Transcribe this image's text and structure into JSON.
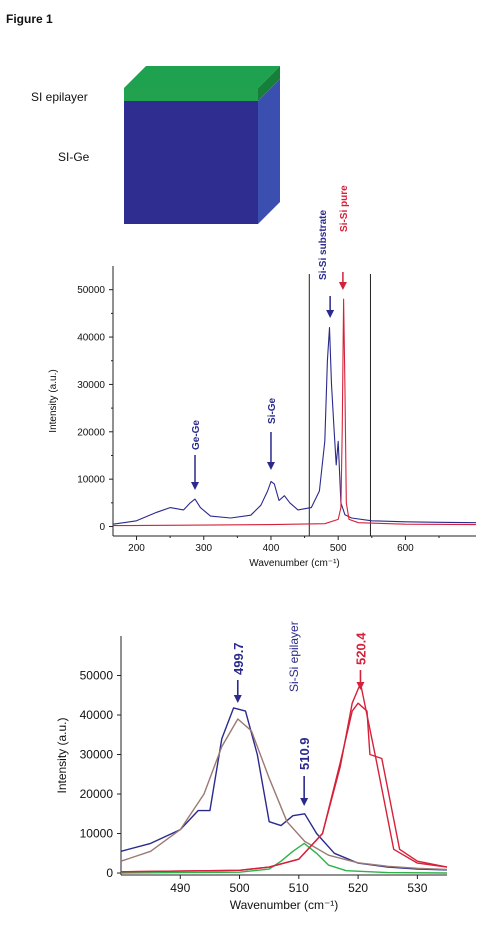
{
  "figure_label": "Figure 1",
  "schematic": {
    "top_label": "SI epilayer",
    "bottom_label": "SI-Ge",
    "colors": {
      "epilayer_top": "#1fa24f",
      "epilayer_side": "#16803b",
      "front": "#2f2d8f",
      "side": "#3b4fb0"
    }
  },
  "colors": {
    "blue": "#2b2a8c",
    "red": "#d6213a",
    "green": "#2db34a",
    "brown": "#9a7a74",
    "axis": "#222222"
  },
  "chart_data": [
    {
      "type": "line",
      "xlabel": "Wavenumber (cm⁻¹)",
      "ylabel": "Intensity (a.u.)",
      "xlim": [
        165,
        705
      ],
      "ylim": [
        -2000,
        55000
      ],
      "xticks": [
        200,
        300,
        400,
        500,
        600
      ],
      "yticks": [
        0,
        10000,
        20000,
        30000,
        40000,
        50000
      ],
      "vlines": [
        457,
        548
      ],
      "annotations": [
        {
          "text": "Ge-Ge",
          "x": 287,
          "color": "blue"
        },
        {
          "text": "Si-Ge",
          "x": 400,
          "color": "blue"
        },
        {
          "text": "Si-Si substrate",
          "x": 488,
          "color": "blue"
        },
        {
          "text": "Si-Si pure",
          "x": 507,
          "color": "red"
        }
      ],
      "series": [
        {
          "color": "blue",
          "x": [
            165,
            200,
            230,
            250,
            270,
            280,
            287,
            295,
            310,
            340,
            370,
            385,
            395,
            400,
            405,
            412,
            420,
            428,
            440,
            460,
            472,
            480,
            484,
            487,
            490,
            494,
            497,
            500,
            504,
            510,
            520,
            550,
            600,
            650,
            705
          ],
          "y": [
            500,
            1200,
            3000,
            4000,
            3500,
            5000,
            5800,
            4000,
            2200,
            1800,
            2400,
            4500,
            7500,
            9500,
            9000,
            5500,
            6500,
            5000,
            3500,
            4000,
            7500,
            18000,
            35000,
            42000,
            30000,
            20000,
            13000,
            18000,
            5000,
            2500,
            1800,
            1200,
            1000,
            900,
            800
          ]
        },
        {
          "color": "red",
          "x": [
            165,
            300,
            400,
            480,
            500,
            504,
            506,
            508,
            510,
            512,
            516,
            530,
            600,
            705
          ],
          "y": [
            200,
            300,
            400,
            600,
            1500,
            4000,
            20000,
            48000,
            30000,
            5000,
            1500,
            800,
            500,
            400
          ]
        }
      ]
    },
    {
      "type": "line",
      "xlabel": "Wavenumber (cm⁻¹)",
      "ylabel": "Intensity (a.u.)",
      "xlim": [
        480,
        535
      ],
      "ylim": [
        -500,
        60000
      ],
      "xticks": [
        490,
        500,
        510,
        520,
        530
      ],
      "yticks": [
        0,
        10000,
        20000,
        30000,
        40000,
        50000
      ],
      "annotations": [
        {
          "text": "499.7",
          "x": 499.7,
          "color": "blue",
          "kind": "horizontal"
        },
        {
          "text": "Si-Si epilayer",
          "x": 510.5,
          "color": "blue",
          "kind": "label"
        },
        {
          "text": "510.9",
          "x": 510.9,
          "color": "blue",
          "kind": "vertical"
        },
        {
          "text": "520.4",
          "x": 520.4,
          "color": "red",
          "kind": "horizontal"
        }
      ],
      "series": [
        {
          "color": "blue",
          "x": [
            480,
            485,
            490,
            493,
            495,
            497,
            499,
            501,
            503,
            505,
            507,
            509,
            511,
            513,
            516,
            520,
            525,
            530,
            535
          ],
          "y": [
            5500,
            7500,
            11000,
            15800,
            15800,
            34000,
            41800,
            41000,
            30000,
            13000,
            12000,
            14500,
            15000,
            10000,
            5000,
            2500,
            1500,
            1000,
            800
          ]
        },
        {
          "color": "brown",
          "x": [
            480,
            485,
            490,
            494,
            497,
            499.7,
            502,
            505,
            508,
            511,
            515,
            520,
            525,
            530,
            535
          ],
          "y": [
            3000,
            5500,
            11000,
            20000,
            32000,
            39000,
            36000,
            24000,
            13000,
            8000,
            4500,
            2600,
            1700,
            1200,
            900
          ]
        },
        {
          "color": "green",
          "x": [
            480,
            500,
            505,
            507,
            509,
            510.9,
            513,
            515,
            518,
            525,
            535
          ],
          "y": [
            0,
            200,
            1000,
            3000,
            5500,
            7500,
            5000,
            2000,
            600,
            100,
            0
          ]
        },
        {
          "color": "red",
          "x": [
            480,
            500,
            505,
            510,
            514,
            517,
            519,
            520.4,
            521.5,
            523,
            526,
            530,
            535
          ],
          "y": [
            300,
            700,
            1500,
            3500,
            10000,
            27000,
            43000,
            48000,
            40000,
            29000,
            6000,
            2500,
            1500
          ]
        },
        {
          "color": "red",
          "x": [
            480,
            500,
            505,
            510,
            514,
            517,
            519,
            520,
            521.5,
            522,
            524,
            527,
            530,
            535
          ],
          "y": [
            300,
            700,
            1500,
            3500,
            10000,
            28000,
            41000,
            43000,
            41000,
            30000,
            29000,
            6000,
            3000,
            1500
          ]
        }
      ]
    }
  ]
}
